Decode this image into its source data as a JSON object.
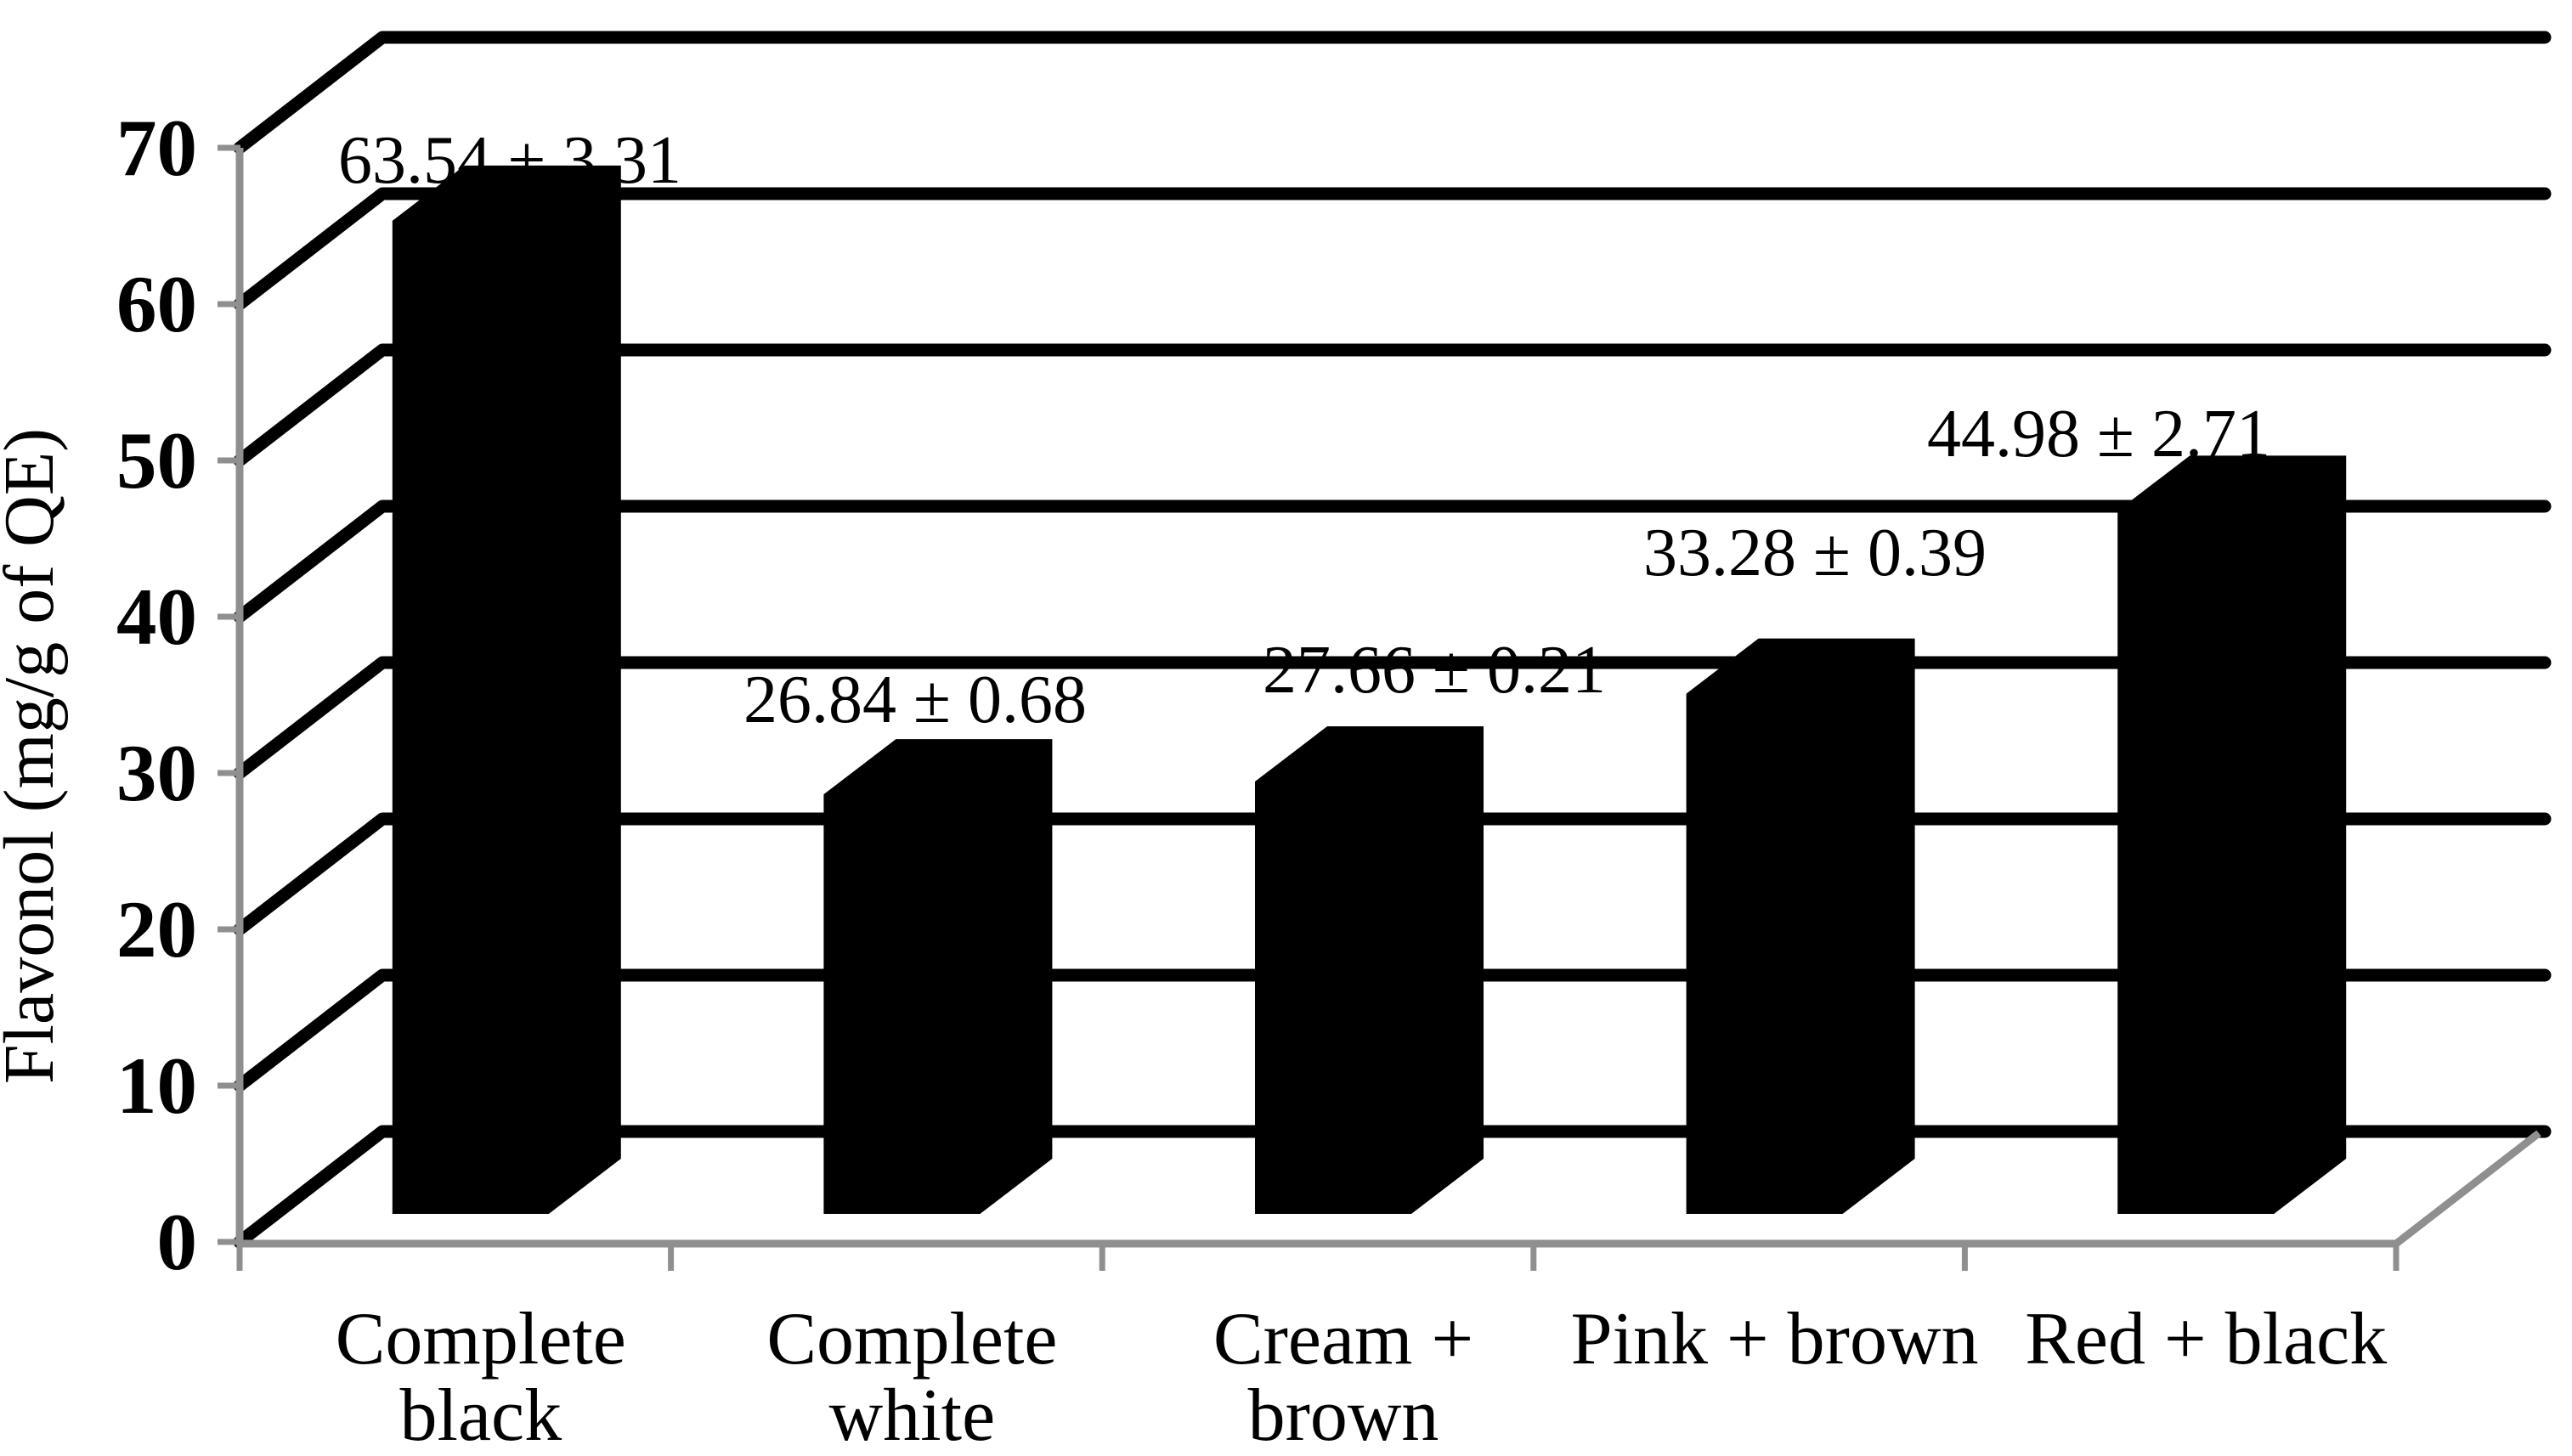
{
  "chart_data": {
    "type": "bar",
    "projection": "3d",
    "title": "",
    "xlabel": "",
    "ylabel": "Flavonol (mg/g of QE)",
    "categories": [
      "Complete black",
      "Complete white",
      "Cream + brown",
      "Pink + brown",
      "Red + black"
    ],
    "category_lines": [
      [
        "Complete",
        "black"
      ],
      [
        "Complete",
        "white"
      ],
      [
        "Cream +",
        "brown"
      ],
      [
        "Pink + brown"
      ],
      [
        "Red + black"
      ]
    ],
    "values": [
      63.54,
      26.84,
      27.66,
      33.28,
      44.98
    ],
    "errors": [
      3.31,
      0.68,
      0.21,
      0.39,
      2.71
    ],
    "data_labels": [
      "63.54 ± 3.31",
      "26.84 ± 0.68",
      "27.66 ± 0.21",
      "33.28 ± 0.39",
      "44.98 ± 2.71"
    ],
    "yticks": [
      0,
      10,
      20,
      30,
      40,
      50,
      60,
      70
    ],
    "ylim": [
      0,
      70
    ],
    "grid": true,
    "legend": "none",
    "bar_color": "#000000",
    "gridline_color": "#000000",
    "axis_color": "#8f8f8f",
    "text_color": "#000000",
    "background_color": "#ffffff"
  }
}
